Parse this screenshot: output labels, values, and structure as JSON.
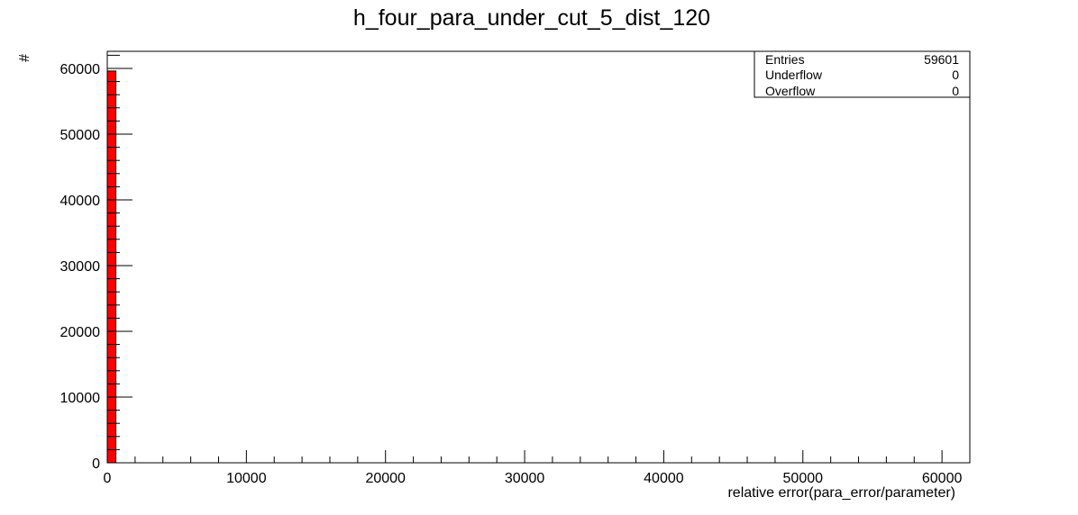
{
  "chart_data": {
    "type": "bar",
    "title": "h_four_para_under_cut_5_dist_120",
    "xlabel": "relative error(para_error/parameter)",
    "ylabel": "#",
    "xlim": [
      0,
      62000
    ],
    "ylim": [
      0,
      62600
    ],
    "x_ticks": [
      0,
      10000,
      20000,
      30000,
      40000,
      50000,
      60000
    ],
    "y_ticks": [
      0,
      10000,
      20000,
      30000,
      40000,
      50000,
      60000
    ],
    "bins": [
      {
        "x_low": 0,
        "x_high": 620,
        "value": 59601
      }
    ],
    "fill_color": "#ff0000",
    "grid": false,
    "legend_position": "top-right",
    "stats": [
      {
        "label": "Entries",
        "value": "59601"
      },
      {
        "label": "Underflow",
        "value": "0"
      },
      {
        "label": "Overflow",
        "value": "0"
      }
    ]
  }
}
